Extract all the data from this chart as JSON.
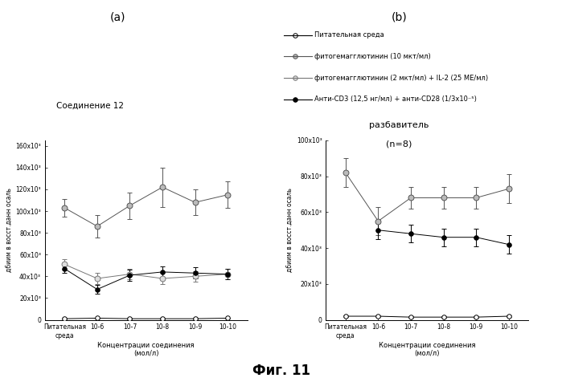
{
  "title_a": "(a)",
  "title_b": "(b)",
  "subtitle_a": "Соединение 12",
  "subtitle_b_line1": "разбавитель",
  "subtitle_b_line2": "(n=8)",
  "fig_label": "Фиг. 11",
  "xlabel": "Концентрации соединения\n(мол/л)",
  "ylabel_a": "дбиим в восст.данн осаль",
  "ylabel_b": "дбиим в восст.данн осаль",
  "xtick_labels": [
    "Питательная\nсреда",
    "10-6",
    "10-7",
    "10-8",
    "10-9",
    "10-10"
  ],
  "legend_labels": [
    "Питательная среда",
    "фитогемагглютинин (10 мкт/мл)",
    "фитогемагглютинин (2 мкт/мл) + IL-2 (25 МЕ/мл)",
    "Анти-СD3 (12,5 нг/мл) + анти-СD28 (1/3x10⁻⁵)"
  ],
  "plot_a": {
    "ylim": [
      0,
      165000
    ],
    "yticks": [
      0,
      20000,
      40000,
      60000,
      80000,
      100000,
      120000,
      140000,
      160000
    ],
    "ytick_labels": [
      "0",
      "20x10³",
      "40x10³",
      "60x10³",
      "80x10³",
      "100x10³",
      "120x10³",
      "140x10³",
      "160x10³"
    ],
    "series": {
      "media": {
        "x": [
          0,
          1,
          2,
          3,
          4,
          5
        ],
        "y": [
          1000,
          1500,
          1000,
          1000,
          1000,
          1500
        ],
        "yerr": [
          500,
          500,
          500,
          500,
          500,
          500
        ]
      },
      "pha10": {
        "x": [
          0,
          1,
          2,
          3,
          4,
          5
        ],
        "y": [
          103000,
          86000,
          105000,
          122000,
          108000,
          115000
        ],
        "yerr": [
          8000,
          10000,
          12000,
          18000,
          12000,
          12000
        ]
      },
      "pha2_il2": {
        "x": [
          0,
          1,
          2,
          3,
          4,
          5
        ],
        "y": [
          51000,
          38000,
          42000,
          38000,
          40000,
          42000
        ],
        "yerr": [
          5000,
          5000,
          5000,
          5000,
          5000,
          5000
        ]
      },
      "anticd3": {
        "x": [
          0,
          1,
          2,
          3,
          4,
          5
        ],
        "y": [
          47000,
          28000,
          41000,
          44000,
          43000,
          42000
        ],
        "yerr": [
          4000,
          4000,
          5000,
          5000,
          5000,
          5000
        ]
      }
    }
  },
  "plot_b": {
    "ylim": [
      0,
      100000
    ],
    "yticks": [
      0,
      20000,
      40000,
      60000,
      80000,
      100000
    ],
    "ytick_labels": [
      "0",
      "20x10³",
      "40x10³",
      "60x10³",
      "80x10³",
      "100x10³"
    ],
    "series": {
      "media": {
        "x": [
          0,
          1,
          2,
          3,
          4,
          5
        ],
        "y": [
          2000,
          2000,
          1500,
          1500,
          1500,
          2000
        ],
        "yerr": [
          500,
          500,
          500,
          500,
          500,
          500
        ]
      },
      "pha10": {
        "x": [
          0,
          1,
          2,
          3,
          4,
          5
        ],
        "y": [
          82000,
          55000,
          68000,
          68000,
          68000,
          73000
        ],
        "yerr": [
          8000,
          8000,
          6000,
          6000,
          6000,
          8000
        ]
      },
      "pha2_il2": {
        "x": [
          0,
          1,
          2,
          3,
          4,
          5
        ],
        "y": [
          null,
          null,
          null,
          null,
          null,
          null
        ],
        "yerr": [
          null,
          null,
          null,
          null,
          null,
          null
        ]
      },
      "anticd3": {
        "x": [
          0,
          1,
          2,
          3,
          4,
          5
        ],
        "y": [
          null,
          50000,
          48000,
          46000,
          46000,
          42000
        ],
        "yerr": [
          null,
          5000,
          5000,
          5000,
          5000,
          5000
        ]
      }
    }
  }
}
